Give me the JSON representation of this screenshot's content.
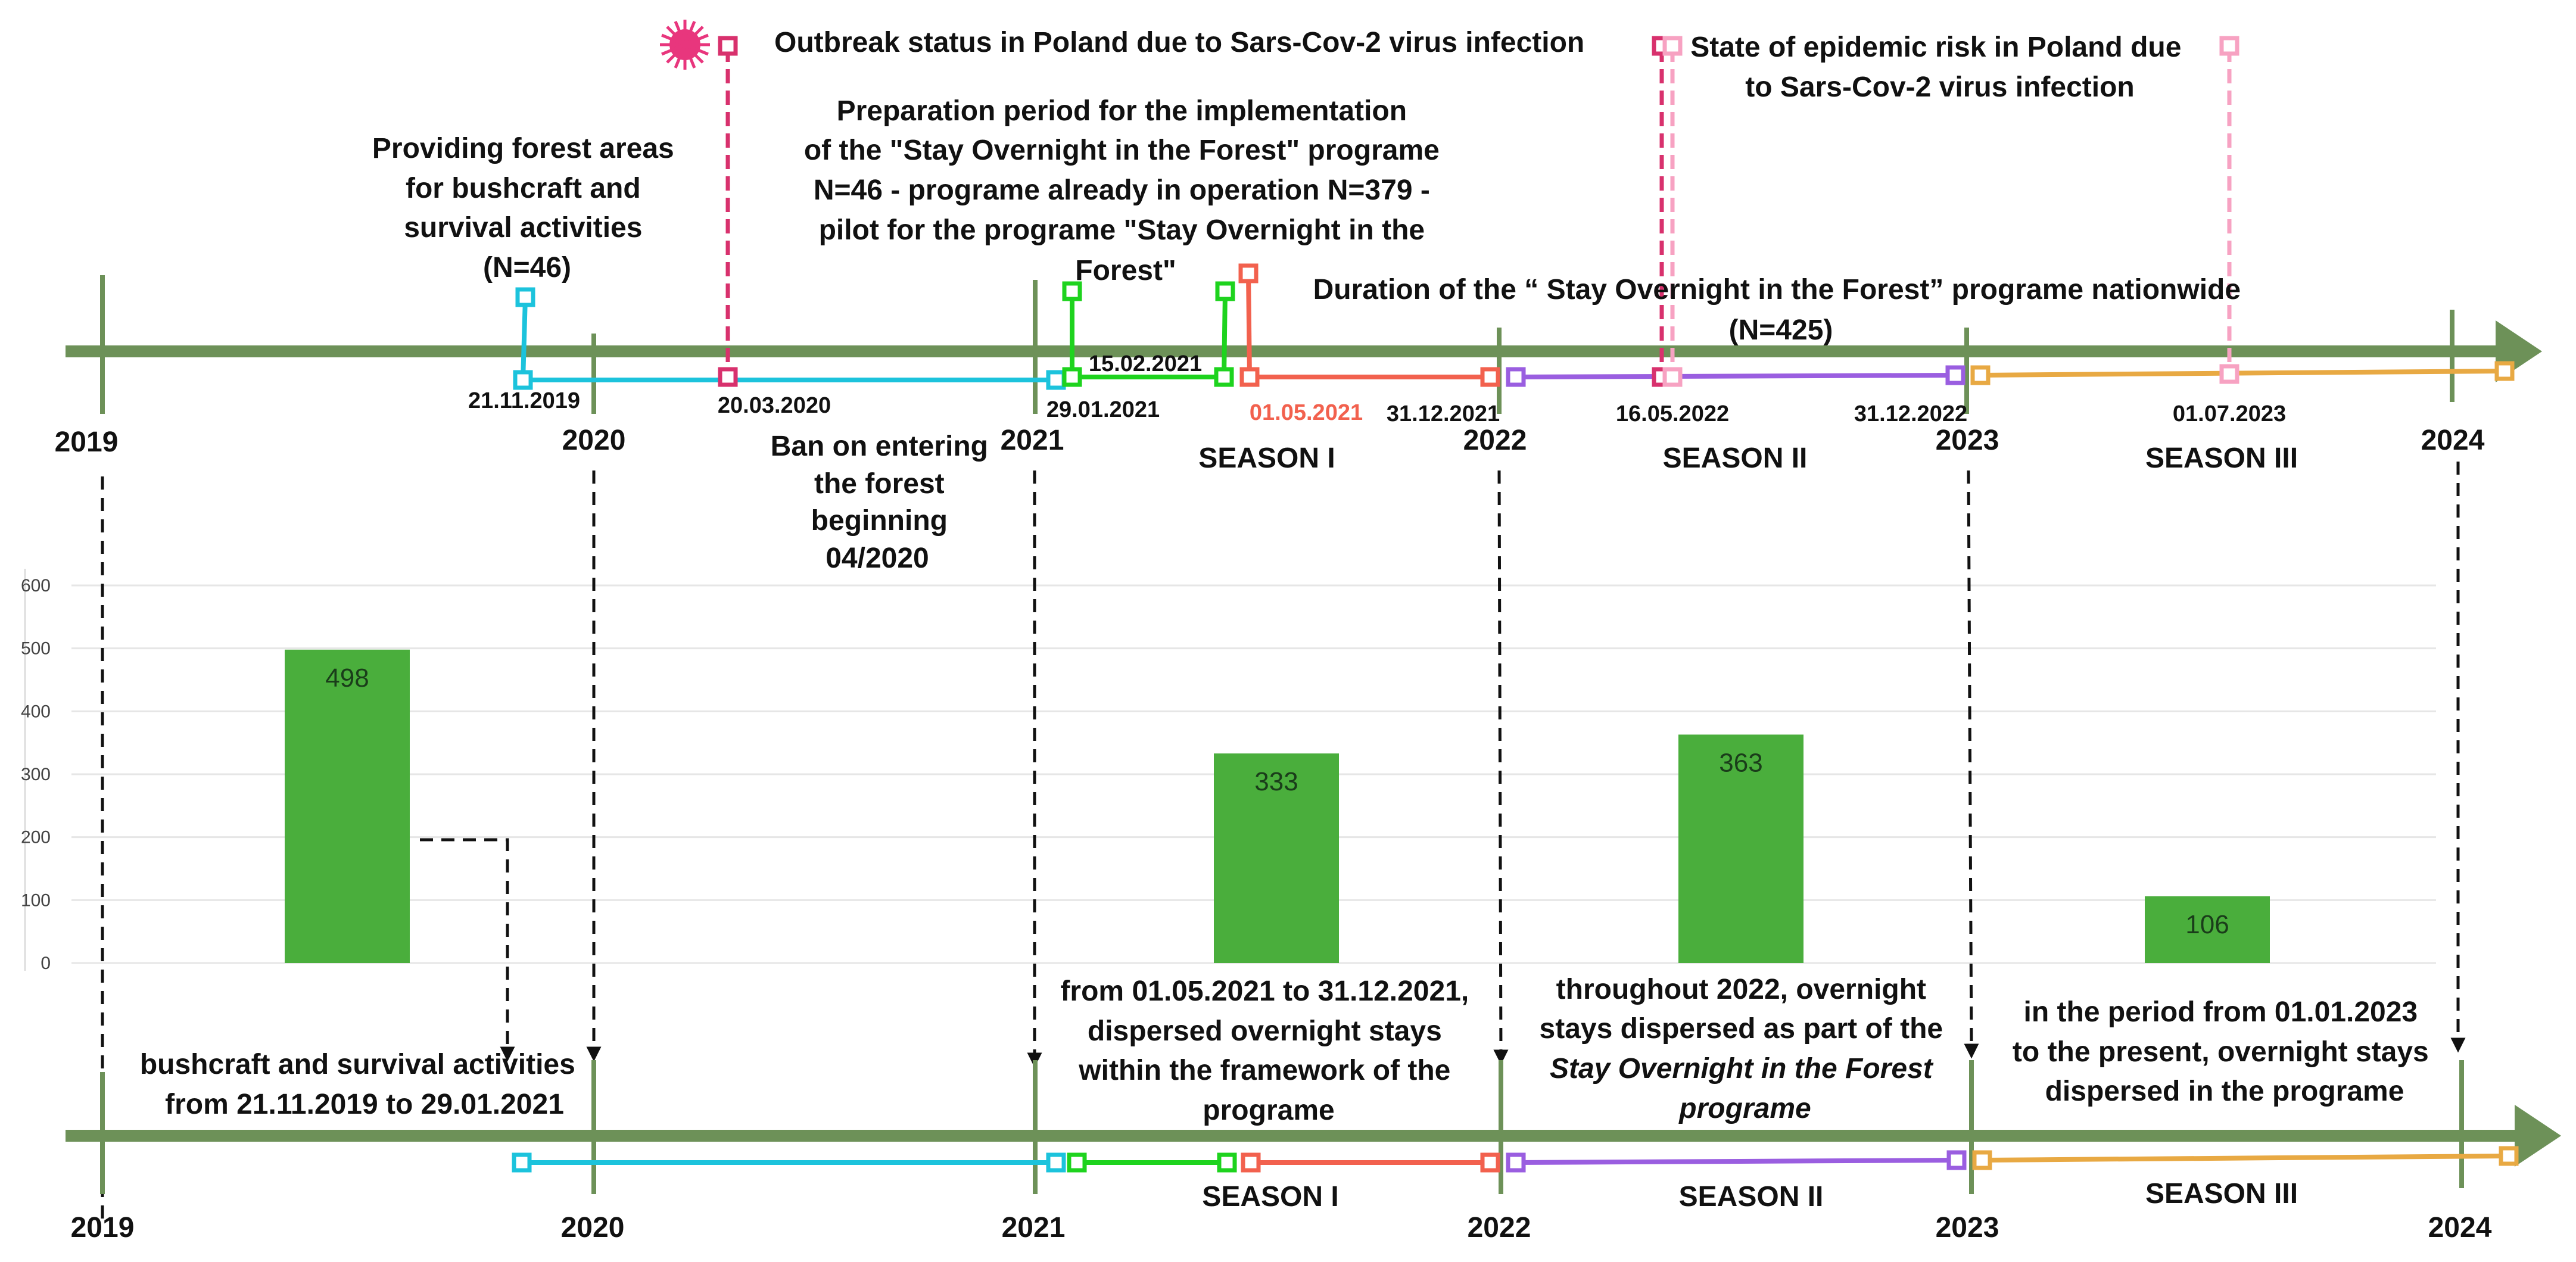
{
  "colors": {
    "axis": "#6d9158",
    "cyan": "#1cc3dc",
    "green": "#1ed31e",
    "red": "#f2614e",
    "purple": "#9a5ee0",
    "orange": "#e8a943",
    "magenta": "#d8316d",
    "pink": "#f7a2c2",
    "bar": "#4aae3c"
  },
  "years": [
    "2019",
    "2020",
    "2021",
    "2022",
    "2023",
    "2024"
  ],
  "top_timeline": {
    "dates": {
      "d1": "21.11.2019",
      "d2": "20.03.2020",
      "d3": "29.01.2021",
      "d4": "15.02.2021",
      "d5": "01.05.2021",
      "d6": "31.12.2021",
      "d7": "16.05.2022",
      "d8": "31.12.2022",
      "d9": "01.07.2023"
    },
    "seasons": [
      "SEASON I",
      "SEASON II",
      "SEASON III"
    ],
    "outbreak": "Outbreak status in Poland due to Sars-Cov-2 virus infection",
    "epidemic_risk": [
      "State of epidemic risk in Poland due",
      "to Sars-Cov-2 virus infection"
    ],
    "forest_areas": [
      "Providing forest areas",
      "for bushcraft and",
      "survival activities",
      "(N=46)"
    ],
    "preparation": [
      "Preparation period for the implementation",
      "of the \"Stay Overnight in the Forest\" programe",
      "N=46 - programe already in operation N=379 -",
      "pilot for the programe \"Stay Overnight in the",
      "Forest\""
    ],
    "duration": [
      "Duration of the “ Stay Overnight in the Forest” programe nationwide",
      "(N=425)"
    ],
    "ban": [
      "Ban on entering",
      "the forest",
      "beginning",
      "04/2020"
    ]
  },
  "chart_data": {
    "type": "bar",
    "categories": [
      "bushcraft and survival activities 21.11.2019 - 29.01.2021",
      "SEASON I (2021)",
      "SEASON II (2022)",
      "SEASON III (2023-present)"
    ],
    "values": [
      498,
      333,
      363,
      106
    ],
    "value_labels": [
      "498",
      "333",
      "363",
      "106"
    ],
    "ylim": [
      0,
      600
    ],
    "yticks": [
      "0",
      "100",
      "200",
      "300",
      "400",
      "500",
      "600"
    ],
    "grid": true
  },
  "bottom_timeline": {
    "seasons": [
      "SEASON I",
      "SEASON II",
      "SEASON III"
    ],
    "notes": {
      "bushcraft": [
        "bushcraft and survival activities",
        "from 21.11.2019 to 29.01.2021"
      ],
      "season1": [
        "from 01.05.2021 to 31.12.2021,",
        "dispersed overnight stays",
        "within the framework of the",
        "programe"
      ],
      "season2": [
        "throughout 2022, overnight",
        "stays dispersed as part of the",
        "Stay Overnight in the Forest",
        "programe"
      ],
      "season3": [
        "in the period from 01.01.2023",
        "to the present, overnight stays",
        "dispersed in the programe"
      ]
    }
  }
}
